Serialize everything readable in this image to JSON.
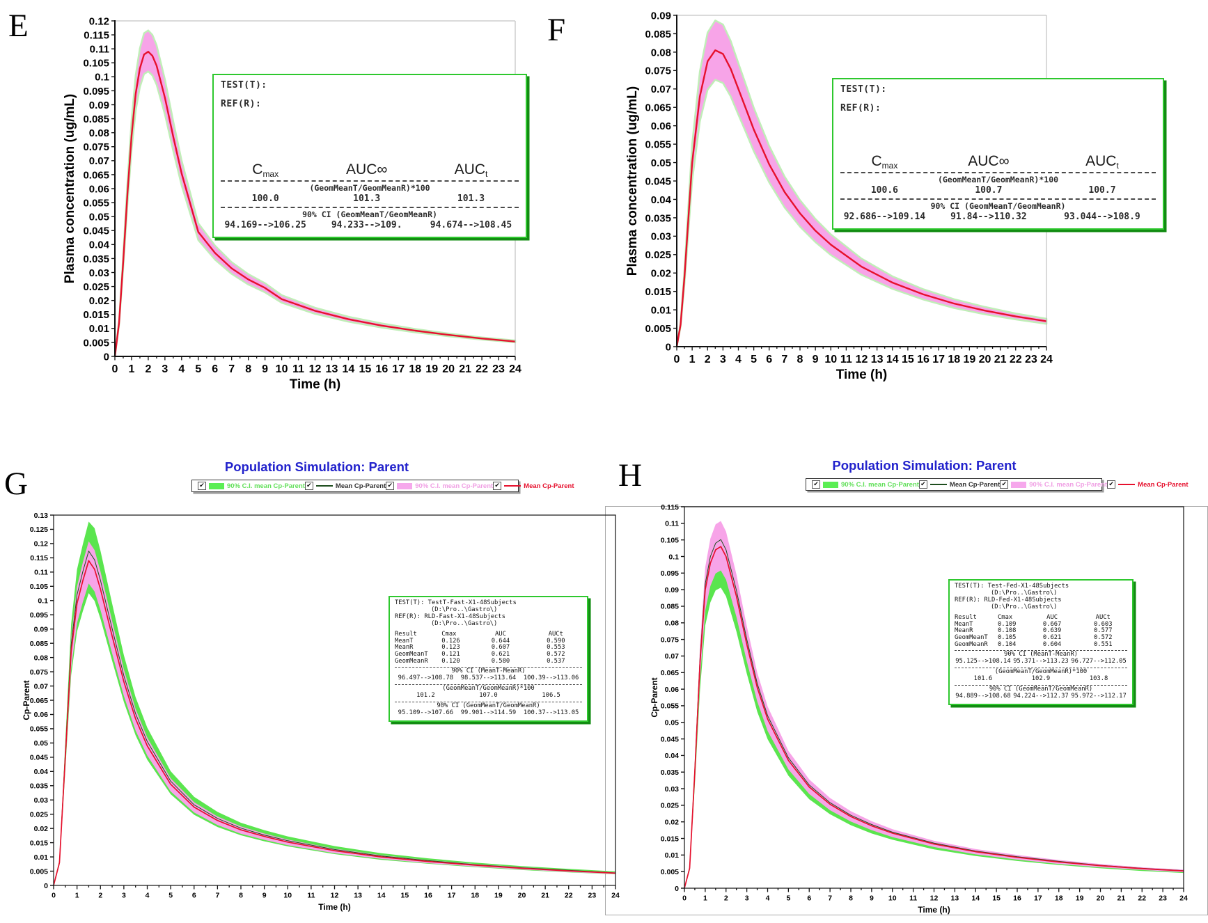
{
  "figure": {
    "panel_letters": {
      "E": "E",
      "F": "F",
      "G": "G",
      "H": "H"
    }
  },
  "sim_title": "Population Simulation: Parent",
  "colors": {
    "mean_line_red": "#e6102d",
    "ci_band_pink": "#f7a4e8",
    "ci_band_green": "#5ae54e",
    "band_edge_pale_green": "#c0eeb8",
    "mean_line_dark": "#1d4d1d",
    "title_blue": "#2222cc",
    "inset_border_green": "#2ec82e"
  },
  "legend": {
    "items": [
      {
        "label": "90% C.I. mean Cp-Parent",
        "swatch": "fill",
        "color": "#5bee54",
        "text_color": "#63e05b",
        "checked": true
      },
      {
        "label": "Mean Cp-Parent",
        "swatch": "line",
        "color": "#1d4d1d",
        "text_color": "#333333",
        "checked": true
      },
      {
        "label": "90% C.I. mean Cp-Parent",
        "swatch": "fill",
        "color": "#f6a8ec",
        "text_color": "#f0a0e4",
        "checked": true
      },
      {
        "label": "Mean Cp-Parent",
        "swatch": "line",
        "color": "#e6102d",
        "text_color": "#e6102d",
        "checked": true
      }
    ]
  },
  "insets": {
    "E": {
      "test_label": "TEST(T):",
      "ref_label": "REF(R):",
      "columns": [
        [
          "C",
          "max"
        ],
        [
          "AUC∞",
          ""
        ],
        [
          "AUC",
          "t"
        ]
      ],
      "sections": [
        {
          "header": "(GeomMeanT/GeomMeanR)*100",
          "values": [
            "100.0",
            "101.3",
            "101.3"
          ]
        },
        {
          "header": "90% CI (GeomMeanT/GeomMeanR)",
          "values": [
            "94.169-->106.25",
            "94.233-->109.",
            "94.674-->108.45"
          ]
        }
      ]
    },
    "F": {
      "test_label": "TEST(T):",
      "ref_label": "REF(R):",
      "columns": [
        [
          "C",
          "max"
        ],
        [
          "AUC∞",
          ""
        ],
        [
          "AUC",
          "t"
        ]
      ],
      "sections": [
        {
          "header": "(GeomMeanT/GeomMeanR)*100",
          "values": [
            "100.6",
            "100.7",
            "100.7"
          ]
        },
        {
          "header": "90% CI (GeomMeanT/GeomMeanR)",
          "values": [
            "92.686-->109.14",
            "91.84-->110.32",
            "93.044-->108.9"
          ]
        }
      ]
    },
    "G": {
      "test_line": "TEST(T): TestT-Fast-X1-48Subjects",
      "test_path": "(D:\\Pro..\\Gastro\\)",
      "ref_line": "REF(R): RLD-Fast-X1-48Subjects",
      "ref_path": "(D:\\Pro..\\Gastro\\)",
      "table": {
        "headers": [
          "Result",
          "Cmax",
          "AUC",
          "AUCt"
        ],
        "rows": [
          [
            "MeanT",
            "0.126",
            "0.644",
            "0.590"
          ],
          [
            "MeanR",
            "0.123",
            "0.607",
            "0.553"
          ],
          [
            "GeomMeanT",
            "0.121",
            "0.621",
            "0.572"
          ],
          [
            "GeomMeanR",
            "0.120",
            "0.580",
            "0.537"
          ]
        ]
      },
      "sections": [
        {
          "header": "90% CI (MeanT-MeanR)",
          "values": [
            "96.497-->108.78",
            "98.537-->113.64",
            "100.39-->113.06"
          ]
        },
        {
          "header": "(GeomMeanT/GeomMeanR)*100",
          "values": [
            "101.2",
            "107.0",
            "106.5"
          ]
        },
        {
          "header": "90% CI (GeomMeanT/GeomMeanR)",
          "values": [
            "95.109-->107.66",
            "99.901-->114.59",
            "100.37-->113.05"
          ]
        }
      ]
    },
    "H": {
      "test_line": "TEST(T): Test-Fed-X1-48Subjects",
      "test_path": "(D:\\Pro..\\Gastro\\)",
      "ref_line": "REF(R): RLD-Fed-X1-48Subjects",
      "ref_path": "(D:\\Pro..\\Gastro\\)",
      "table": {
        "headers": [
          "Result",
          "Cmax",
          "AUC",
          "AUCt"
        ],
        "rows": [
          [
            "MeanT",
            "0.109",
            "0.667",
            "0.603"
          ],
          [
            "MeanR",
            "0.108",
            "0.639",
            "0.577"
          ],
          [
            "GeomMeanT",
            "0.105",
            "0.621",
            "0.572"
          ],
          [
            "GeomMeanR",
            "0.104",
            "0.604",
            "0.551"
          ]
        ]
      },
      "sections": [
        {
          "header": "90% CI (MeanT-MeanR)",
          "values": [
            "95.125-->108.14",
            "95.371-->113.23",
            "96.727-->112.05"
          ]
        },
        {
          "header": "(GeomMeanT/GeomMeanR)*100",
          "values": [
            "101.6",
            "102.9",
            "103.8"
          ]
        },
        {
          "header": "90% CI (GeomMeanT/GeomMeanR)",
          "values": [
            "94.889-->108.68",
            "94.224-->112.37",
            "95.972-->112.17"
          ]
        }
      ]
    }
  },
  "chart_data": [
    {
      "id": "E",
      "type": "line",
      "title": "",
      "xlabel": "Time (h)",
      "ylabel": "Plasma concentration (ug/mL)",
      "xlim": [
        0,
        24
      ],
      "ylim": [
        0,
        0.12
      ],
      "xtick": 1,
      "ytick": 0.005,
      "grid": false,
      "legend_position": "none",
      "x": [
        0,
        0.25,
        0.5,
        0.75,
        1,
        1.25,
        1.5,
        1.75,
        2,
        2.25,
        2.5,
        3,
        3.5,
        4,
        4.5,
        5,
        6,
        7,
        8,
        9,
        10,
        12,
        14,
        16,
        18,
        20,
        22,
        24
      ],
      "bands": [
        {
          "name": "90% CI",
          "color": "#f7a4e8",
          "edge": "#c0eeb8",
          "upper": [
            0,
            0.0128,
            0.0364,
            0.0621,
            0.0845,
            0.1006,
            0.1102,
            0.1156,
            0.1166,
            0.115,
            0.1113,
            0.099,
            0.084,
            0.0701,
            0.0589,
            0.0476,
            0.0396,
            0.0337,
            0.0294,
            0.0262,
            0.0219,
            0.0174,
            0.0142,
            0.0118,
            0.0098,
            0.0082,
            0.0068,
            0.0057
          ],
          "lower": [
            0,
            0.0112,
            0.0318,
            0.0542,
            0.0739,
            0.0879,
            0.0963,
            0.101,
            0.1019,
            0.1005,
            0.0972,
            0.0865,
            0.0734,
            0.0612,
            0.0514,
            0.0416,
            0.0346,
            0.0295,
            0.0257,
            0.0229,
            0.0192,
            0.0152,
            0.0124,
            0.0103,
            0.0086,
            0.0072,
            0.006,
            0.005
          ]
        }
      ],
      "series": [
        {
          "name": "Mean plasma concentration",
          "color": "#e6102d",
          "width": 2.4,
          "values": [
            0,
            0.012,
            0.034,
            0.058,
            0.079,
            0.094,
            0.103,
            0.108,
            0.109,
            0.1075,
            0.104,
            0.0925,
            0.0785,
            0.0655,
            0.055,
            0.0445,
            0.037,
            0.0315,
            0.0275,
            0.0245,
            0.0205,
            0.0163,
            0.0133,
            0.011,
            0.0092,
            0.0077,
            0.0064,
            0.0053
          ]
        }
      ]
    },
    {
      "id": "F",
      "type": "line",
      "title": "",
      "xlabel": "Time (h)",
      "ylabel": "Plasma concentration (ug/mL)",
      "xlim": [
        0,
        24
      ],
      "ylim": [
        0,
        0.09
      ],
      "xtick": 1,
      "ytick": 0.005,
      "grid": false,
      "legend_position": "none",
      "x": [
        0,
        0.25,
        0.5,
        1,
        1.5,
        2,
        2.5,
        3,
        3.5,
        4,
        4.5,
        5,
        6,
        7,
        8,
        9,
        10,
        12,
        14,
        16,
        18,
        20,
        22,
        24
      ],
      "bands": [
        {
          "name": "90% CI",
          "color": "#f7a4e8",
          "edge": "#c0eeb8",
          "upper": [
            0,
            0.0066,
            0.0209,
            0.055,
            0.0748,
            0.0853,
            0.0886,
            0.0875,
            0.0831,
            0.077,
            0.071,
            0.0649,
            0.0545,
            0.0462,
            0.0398,
            0.0347,
            0.0305,
            0.0239,
            0.0191,
            0.0156,
            0.0129,
            0.0108,
            0.009,
            0.0076
          ],
          "lower": [
            0,
            0.0054,
            0.0171,
            0.045,
            0.0612,
            0.0698,
            0.0725,
            0.0716,
            0.068,
            0.063,
            0.0581,
            0.0531,
            0.0446,
            0.0378,
            0.0326,
            0.0284,
            0.0249,
            0.0195,
            0.0157,
            0.0128,
            0.0105,
            0.0088,
            0.0074,
            0.0062
          ]
        }
      ],
      "series": [
        {
          "name": "Mean plasma concentration",
          "color": "#e6102d",
          "width": 2.4,
          "values": [
            0,
            0.006,
            0.019,
            0.05,
            0.068,
            0.0775,
            0.0805,
            0.0795,
            0.0755,
            0.07,
            0.0645,
            0.059,
            0.0495,
            0.042,
            0.0362,
            0.0315,
            0.0277,
            0.0217,
            0.0174,
            0.0142,
            0.0117,
            0.0098,
            0.0082,
            0.0069
          ]
        }
      ]
    },
    {
      "id": "G",
      "type": "line",
      "title": "Population Simulation: Parent",
      "xlabel": "Time (h)",
      "ylabel": "Cp-Parent",
      "xlim": [
        0,
        24
      ],
      "ylim": [
        0,
        0.13
      ],
      "xtick": 1,
      "ytick": 0.005,
      "grid": false,
      "legend_position": "top",
      "x": [
        0,
        0.25,
        0.5,
        0.75,
        1,
        1.25,
        1.5,
        1.75,
        2,
        2.5,
        3,
        3.5,
        4,
        5,
        6,
        7,
        8,
        9,
        10,
        12,
        14,
        16,
        18,
        20,
        22,
        24
      ],
      "bands": [
        {
          "name": "90% C.I. mean Cp-Parent (T)",
          "color": "#5ae54e",
          "upper": [
            0,
            0.009,
            0.0504,
            0.0918,
            0.1109,
            0.1198,
            0.1277,
            0.1254,
            0.1175,
            0.0989,
            0.0808,
            0.0661,
            0.0554,
            0.0401,
            0.0311,
            0.0258,
            0.022,
            0.0194,
            0.0172,
            0.0138,
            0.0113,
            0.0095,
            0.008,
            0.0068,
            0.0058,
            0.0049
          ],
          "lower": [
            0,
            0.0072,
            0.0405,
            0.0738,
            0.0891,
            0.0963,
            0.1026,
            0.0999,
            0.0936,
            0.0788,
            0.0644,
            0.0527,
            0.0441,
            0.032,
            0.0248,
            0.0205,
            0.0176,
            0.0155,
            0.0137,
            0.011,
            0.009,
            0.0076,
            0.0064,
            0.0054,
            0.0046,
            0.0039
          ]
        },
        {
          "name": "90% C.I. mean Cp-Parent (R)",
          "color": "#f7a4e8",
          "upper": [
            0,
            0.0085,
            0.0477,
            0.0869,
            0.1049,
            0.1134,
            0.1208,
            0.1177,
            0.1102,
            0.0928,
            0.0758,
            0.062,
            0.0519,
            0.0376,
            0.0292,
            0.0242,
            0.0207,
            0.0182,
            0.0161,
            0.0129,
            0.0106,
            0.0089,
            0.0075,
            0.0064,
            0.0054,
            0.0046
          ],
          "lower": [
            0,
            0.0074,
            0.0419,
            0.0763,
            0.0921,
            0.0995,
            0.106,
            0.1032,
            0.0967,
            0.0814,
            0.0665,
            0.0544,
            0.0456,
            0.033,
            0.0256,
            0.0212,
            0.0181,
            0.016,
            0.0141,
            0.0113,
            0.0093,
            0.0078,
            0.0066,
            0.0056,
            0.0047,
            0.004
          ]
        }
      ],
      "series": [
        {
          "name": "Mean Cp-Parent (T)",
          "color": "#1d4d1d",
          "width": 1,
          "values": [
            0,
            0.0082,
            0.0464,
            0.0845,
            0.102,
            0.1102,
            0.1174,
            0.1143,
            0.1071,
            0.0901,
            0.0736,
            0.0603,
            0.0505,
            0.0366,
            0.0283,
            0.0235,
            0.0201,
            0.0177,
            0.0157,
            0.0126,
            0.0103,
            0.0087,
            0.0073,
            0.0062,
            0.0053,
            0.0044
          ]
        },
        {
          "name": "Mean Cp-Parent (R)",
          "color": "#e6102d",
          "width": 1.7,
          "values": [
            0,
            0.008,
            0.045,
            0.082,
            0.099,
            0.107,
            0.114,
            0.111,
            0.104,
            0.0875,
            0.0715,
            0.0585,
            0.049,
            0.0355,
            0.0275,
            0.0228,
            0.0195,
            0.0172,
            0.0152,
            0.0122,
            0.01,
            0.0084,
            0.0071,
            0.006,
            0.0051,
            0.0043
          ]
        }
      ]
    },
    {
      "id": "H",
      "type": "line",
      "title": "Population Simulation: Parent",
      "xlabel": "Time (h)",
      "ylabel": "Cp-Parent",
      "xlim": [
        0,
        24
      ],
      "ylim": [
        0,
        0.115
      ],
      "xtick": 1,
      "ytick": 0.005,
      "grid": false,
      "legend_position": "top",
      "x": [
        0,
        0.25,
        0.5,
        0.75,
        1,
        1.25,
        1.5,
        1.75,
        2,
        2.5,
        3,
        3.5,
        4,
        5,
        6,
        7,
        8,
        9,
        10,
        12,
        14,
        16,
        18,
        20,
        22,
        24
      ],
      "bands": [
        {
          "name": "90% C.I. mean Cp-Parent (T)",
          "color": "#5ae54e",
          "upper": [
            0,
            0.0063,
            0.0366,
            0.0697,
            0.0923,
            0.1,
            0.1041,
            0.1051,
            0.102,
            0.09,
            0.0752,
            0.0619,
            0.0522,
            0.0394,
            0.0312,
            0.0259,
            0.0221,
            0.0192,
            0.017,
            0.0136,
            0.0112,
            0.0095,
            0.0081,
            0.007,
            0.006,
            0.0053
          ],
          "lower": [
            0,
            0.0053,
            0.0308,
            0.0598,
            0.0792,
            0.0862,
            0.0898,
            0.0906,
            0.088,
            0.0774,
            0.0647,
            0.0532,
            0.0449,
            0.0339,
            0.0268,
            0.0223,
            0.019,
            0.0165,
            0.0146,
            0.0117,
            0.0097,
            0.0082,
            0.007,
            0.006,
            0.0052,
            0.0046
          ]
        },
        {
          "name": "90% C.I. mean Cp-Parent (R)",
          "color": "#f7a4e8",
          "upper": [
            0,
            0.0065,
            0.0376,
            0.0731,
            0.0968,
            0.1054,
            0.1097,
            0.1107,
            0.1075,
            0.0946,
            0.079,
            0.065,
            0.0548,
            0.0414,
            0.0328,
            0.0272,
            0.0232,
            0.0202,
            0.0178,
            0.0143,
            0.0118,
            0.01,
            0.0085,
            0.0073,
            0.0063,
            0.0056
          ],
          "lower": [
            0,
            0.0056,
            0.0326,
            0.0632,
            0.0837,
            0.0911,
            0.0949,
            0.0958,
            0.093,
            0.0818,
            0.0684,
            0.0563,
            0.0474,
            0.0358,
            0.0284,
            0.0235,
            0.0201,
            0.0175,
            0.0154,
            0.0124,
            0.0102,
            0.0086,
            0.0073,
            0.0063,
            0.0055,
            0.0048
          ]
        }
      ],
      "series": [
        {
          "name": "Mean Cp-Parent (T)",
          "color": "#1d4d1d",
          "width": 1,
          "values": [
            0,
            0.0061,
            0.0357,
            0.0694,
            0.0918,
            0.1,
            0.104,
            0.1051,
            0.102,
            0.0898,
            0.075,
            0.0617,
            0.052,
            0.0393,
            0.0311,
            0.0258,
            0.022,
            0.0192,
            0.0169,
            0.0136,
            0.0112,
            0.0095,
            0.0081,
            0.0069,
            0.006,
            0.0053
          ]
        },
        {
          "name": "Mean Cp-Parent (R)",
          "color": "#e6102d",
          "width": 1.7,
          "values": [
            0,
            0.006,
            0.035,
            0.068,
            0.09,
            0.098,
            0.102,
            0.103,
            0.1,
            0.088,
            0.0735,
            0.0605,
            0.051,
            0.0385,
            0.0305,
            0.0253,
            0.0216,
            0.0188,
            0.0166,
            0.0133,
            0.011,
            0.0093,
            0.0079,
            0.0068,
            0.0059,
            0.0052
          ]
        }
      ]
    }
  ]
}
